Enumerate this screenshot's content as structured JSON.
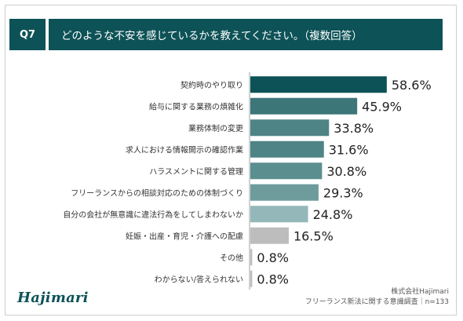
{
  "header": {
    "badge": "Q7",
    "title": "どのような不安を感じているかを教えてください。（複数回答）"
  },
  "logo": {
    "text": "Hajimari"
  },
  "footer": {
    "company": "株式会社Hajimari",
    "survey": "フリーランス新法に関する意識調査｜n=133"
  },
  "chart_data": {
    "type": "bar",
    "orientation": "horizontal",
    "categories": [
      "契約時のやり取り",
      "給与に関する業務の煩雑化",
      "業務体制の変更",
      "求人における情報開示の確認作業",
      "ハラスメントに関する管理",
      "フリーランスからの相談対応のための体制づくり",
      "自分の会社が無意識に違法行為をしてしまわないか",
      "妊娠・出産・育児・介護への配慮",
      "その他",
      "わからない/答えられない"
    ],
    "values": [
      58.6,
      45.9,
      33.8,
      31.6,
      30.8,
      29.3,
      24.8,
      16.5,
      0.8,
      0.8
    ],
    "value_labels": [
      "58.6%",
      "45.9%",
      "33.8%",
      "31.6%",
      "30.8%",
      "29.3%",
      "24.8%",
      "16.5%",
      "0.8%",
      "0.8%"
    ],
    "colors": [
      "#0d5257",
      "#3c7679",
      "#4e8486",
      "#4e8486",
      "#5b8e8f",
      "#6e9c9d",
      "#94b8b9",
      "#bdbdbd",
      "#bdbdbd",
      "#bdbdbd"
    ],
    "ylim": [
      0,
      60
    ],
    "grid": false,
    "legend": "none"
  }
}
